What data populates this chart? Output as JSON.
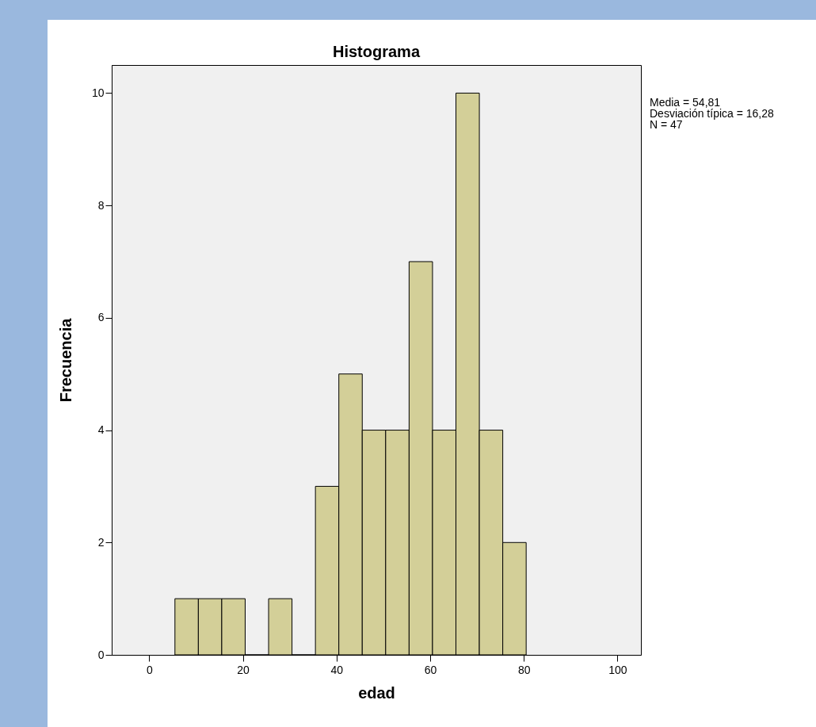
{
  "chart_data": {
    "type": "histogram",
    "title": "Histograma",
    "xlabel": "edad",
    "ylabel": "Frecuencia",
    "bins": [
      5.5,
      10.5,
      15.5,
      20.5,
      25.5,
      30.5,
      35.5,
      40.5,
      45.5,
      50.5,
      55.5,
      60.5,
      65.5,
      70.5,
      75.5,
      80.5
    ],
    "values": [
      1,
      1,
      1,
      0,
      1,
      0,
      3,
      5,
      4,
      4,
      7,
      4,
      10,
      4,
      2
    ],
    "color": "#d3cf98",
    "xlim": [
      -8,
      105
    ],
    "xticks": [
      0,
      20,
      40,
      60,
      80,
      100
    ],
    "ylim": [
      0,
      10.5
    ],
    "yticks": [
      0,
      2,
      4,
      6,
      8,
      10
    ],
    "grid": false,
    "annotations": [
      "Media = 54,81",
      "Desviación típica = 16,28",
      "N = 47"
    ]
  }
}
